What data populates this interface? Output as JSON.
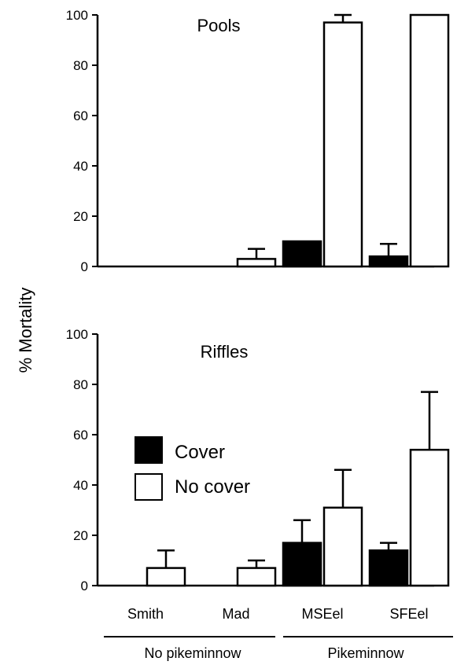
{
  "chart_data": {
    "type": "bar",
    "ylabel": "% Mortality",
    "categories": [
      "Smith",
      "Mad",
      "MSEel",
      "SFEel"
    ],
    "groups": [
      {
        "label": "No pikeminnow",
        "categories": [
          "Smith",
          "Mad"
        ]
      },
      {
        "label": "Pikeminnow",
        "categories": [
          "MSEel",
          "SFEel"
        ]
      }
    ],
    "legend": {
      "placement": "middle-left of lower panel",
      "entries": [
        "Cover",
        "No cover"
      ]
    },
    "colors": {
      "Cover": "#000000",
      "No cover": "#ffffff"
    },
    "grid": false,
    "panels": [
      {
        "title": "Pools",
        "ylim": [
          0,
          100
        ],
        "yticks": [
          "0",
          "20",
          "40",
          "60",
          "80",
          "100"
        ],
        "series": [
          {
            "name": "Cover",
            "values": [
              0,
              0,
              10,
              4
            ],
            "errors": [
              0,
              0,
              0,
              5
            ]
          },
          {
            "name": "No cover",
            "values": [
              0,
              3,
              97,
              100
            ],
            "errors": [
              0,
              4,
              3,
              0
            ]
          }
        ]
      },
      {
        "title": "Riffles",
        "ylim": [
          0,
          100
        ],
        "yticks": [
          "0",
          "20",
          "40",
          "60",
          "80",
          "100"
        ],
        "series": [
          {
            "name": "Cover",
            "values": [
              0,
              0,
              17,
              14
            ],
            "errors": [
              0,
              0,
              9,
              3
            ]
          },
          {
            "name": "No cover",
            "values": [
              7,
              7,
              31,
              54
            ],
            "errors": [
              7,
              3,
              15,
              23
            ]
          }
        ]
      }
    ]
  }
}
